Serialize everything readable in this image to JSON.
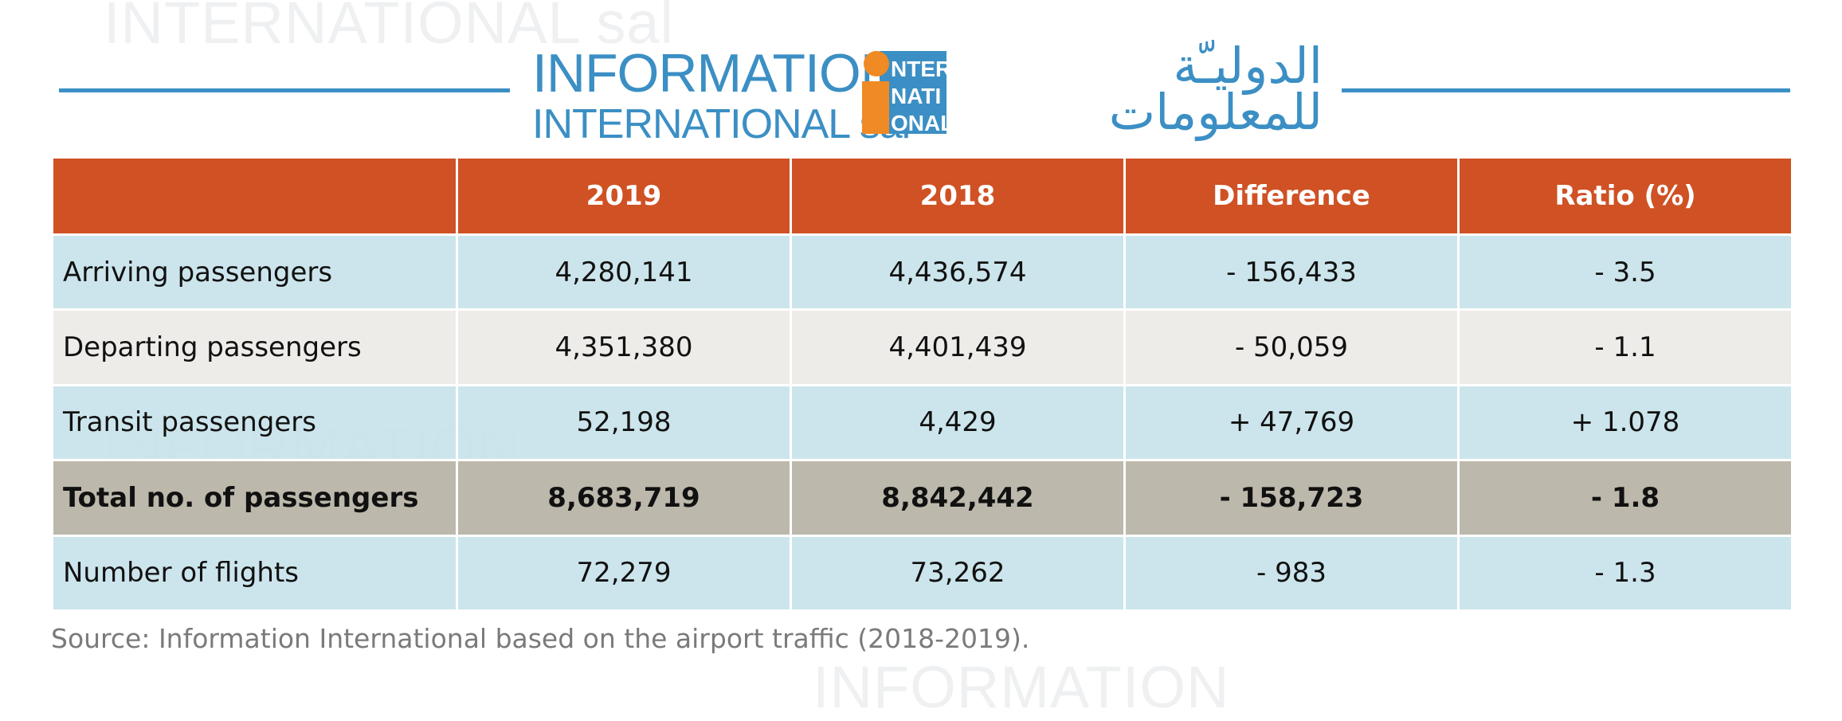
{
  "logo": {
    "en_line1": "INFORMATION",
    "en_line2": "INTERNATIONAL sal",
    "ar_line1": "الدوليـّة",
    "ar_line2": "للمعلومات",
    "mark_lines": [
      "NTER",
      "NATI",
      "ONAL"
    ]
  },
  "watermark": {
    "en_line1": "INFORMATION",
    "en_line2": "INTERNATIONAL sal"
  },
  "colors": {
    "header_bg": "#cf5124",
    "row_blue": "#c8e3ea",
    "row_grey": "#ecebe8",
    "row_total": "#bab6a8",
    "brand_blue": "#3b8fc4",
    "brand_orange": "#f08a24"
  },
  "chart_data": {
    "type": "table",
    "columns": [
      "",
      "2019",
      "2018",
      "Difference",
      "Ratio (%)"
    ],
    "rows": [
      {
        "label": "Arriving passengers",
        "values": [
          "4,280,141",
          "4,436,574",
          "- 156,433",
          "- 3.5"
        ],
        "style": "blue"
      },
      {
        "label": "Departing passengers",
        "values": [
          "4,351,380",
          "4,401,439",
          "- 50,059",
          "- 1.1"
        ],
        "style": "grey"
      },
      {
        "label": "Transit passengers",
        "values": [
          "52,198",
          "4,429",
          "+ 47,769",
          "+ 1.078"
        ],
        "style": "blue"
      },
      {
        "label": "Total no. of passengers",
        "values": [
          "8,683,719",
          "8,842,442",
          "- 158,723",
          "- 1.8"
        ],
        "style": "total"
      },
      {
        "label": "Number of flights",
        "values": [
          "72,279",
          "73,262",
          "- 983",
          "- 1.3"
        ],
        "style": "blue"
      }
    ]
  },
  "source": "Source: Information International based on the airport traffic (2018-2019)."
}
